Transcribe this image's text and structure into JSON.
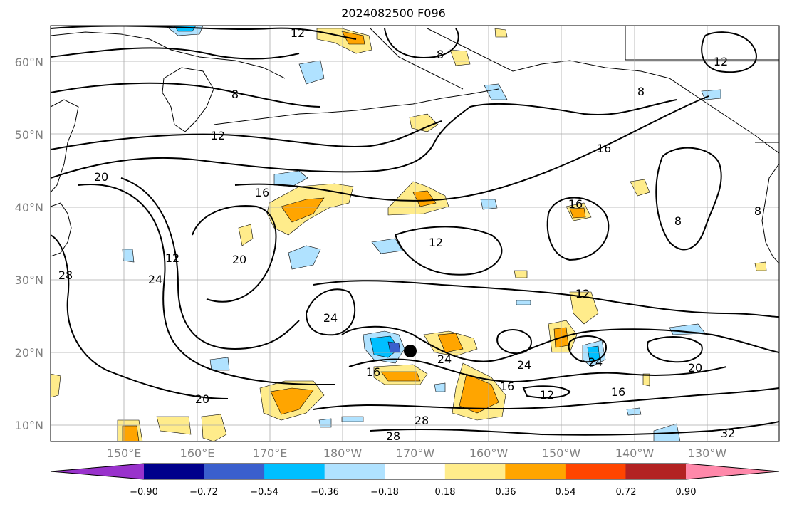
{
  "title": "2024082500 F096",
  "lat_labels": [
    "60°N",
    "50°N",
    "40°N",
    "30°N",
    "20°N",
    "10°N"
  ],
  "lon_labels": [
    "150°E",
    "160°E",
    "170°E",
    "180°W",
    "170°W",
    "160°W",
    "150°W",
    "140°W",
    "130°W"
  ],
  "colorbar": {
    "colors": [
      "#9932cc",
      "#00008b",
      "#3a5fcd",
      "#00bfff",
      "#b0e2ff",
      "#ffffff",
      "#ffec8b",
      "#ffa500",
      "#ff4500",
      "#b22222",
      "#ff88aa"
    ],
    "tick_labels": [
      "−0.90",
      "−0.72",
      "−0.54",
      "−0.36",
      "−0.18",
      "0.18",
      "0.36",
      "0.54",
      "0.72",
      "0.90"
    ]
  },
  "contour_labels": [
    "12",
    "8",
    "8",
    "12",
    "12",
    "20",
    "16",
    "16",
    "12",
    "16",
    "8",
    "8",
    "12",
    "20",
    "24",
    "28",
    "24",
    "16",
    "24",
    "24",
    "16",
    "12",
    "16",
    "20",
    "28",
    "28",
    "24",
    "32",
    "12",
    "8",
    "20"
  ]
}
